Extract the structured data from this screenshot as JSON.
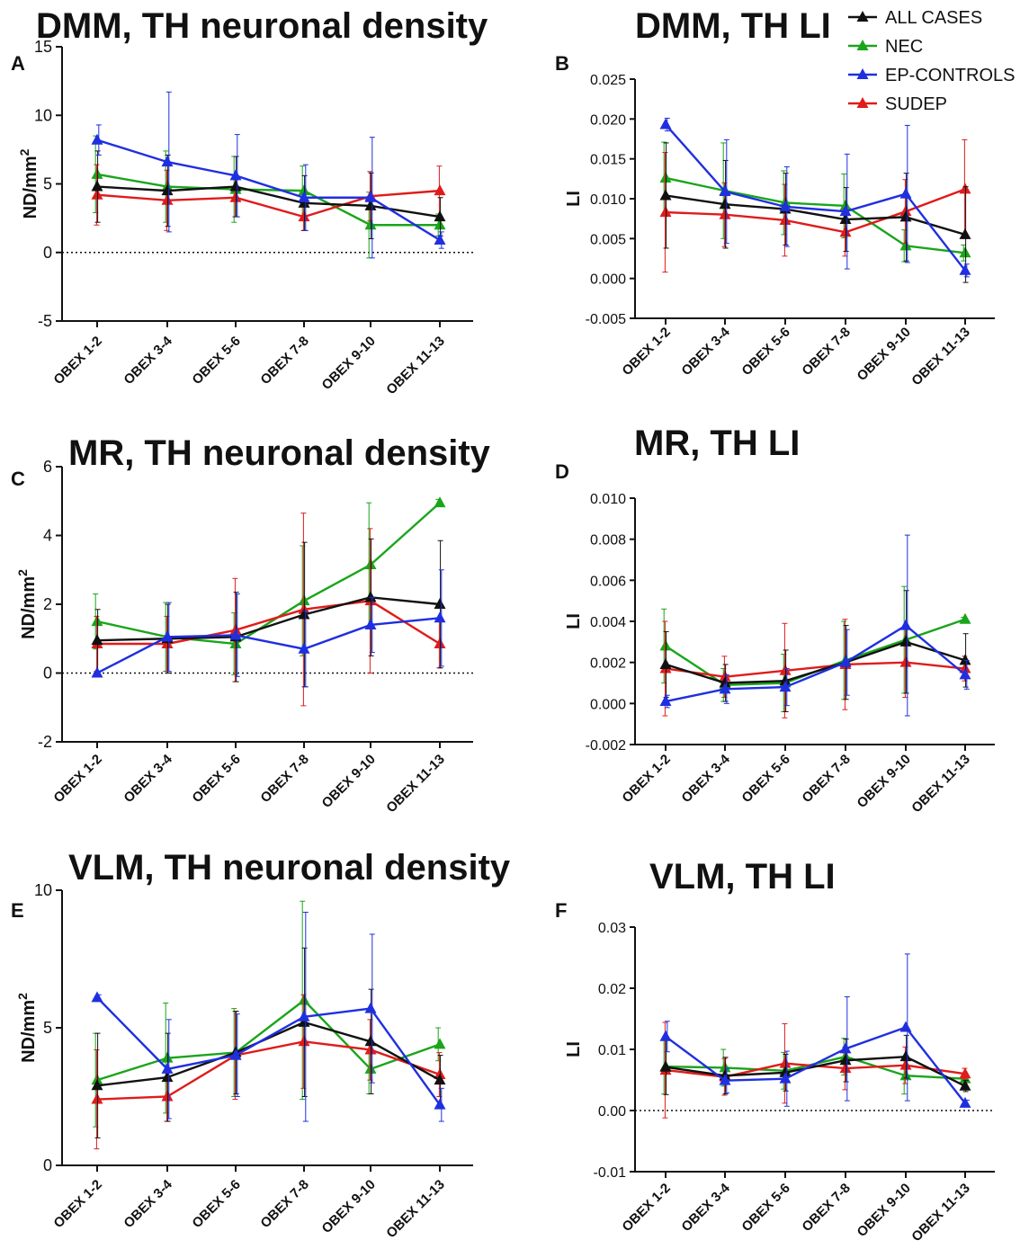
{
  "legend": {
    "items": [
      {
        "name": "ALL CASES",
        "color": "#111111"
      },
      {
        "name": "NEC",
        "color": "#1aa51a"
      },
      {
        "name": "EP-CONTROLS",
        "color": "#1f2fe0"
      },
      {
        "name": "SUDEP",
        "color": "#e01b1b"
      }
    ]
  },
  "chart_data": [
    {
      "panel": "A",
      "type": "line",
      "title": "DMM, TH neuronal density",
      "ylabel": "ND/mm²",
      "ylim": [
        -5,
        15
      ],
      "yticks": [
        -5,
        0,
        5,
        10,
        15
      ],
      "ytick_labels": [
        "-5",
        "0",
        "5",
        "10",
        "15"
      ],
      "zero_line": true,
      "categories": [
        "OBEX 1-2",
        "OBEX 3-4",
        "OBEX 5-6",
        "OBEX 7-8",
        "OBEX 9-10",
        "OBEX 11-13"
      ],
      "series": [
        {
          "name": "NEC",
          "color": "#1aa51a",
          "values": [
            5.7,
            4.8,
            4.6,
            4.5,
            2.0,
            2.0
          ],
          "err": [
            2.8,
            2.6,
            2.4,
            1.8,
            2.4,
            0.8
          ]
        },
        {
          "name": "SUDEP",
          "color": "#e01b1b",
          "values": [
            4.2,
            3.8,
            4.0,
            2.6,
            4.1,
            4.5
          ],
          "err": [
            2.2,
            2.2,
            1.4,
            1.0,
            1.8,
            1.8
          ]
        },
        {
          "name": "ALL CASES",
          "color": "#111111",
          "values": [
            4.8,
            4.5,
            4.8,
            3.6,
            3.4,
            2.6
          ],
          "err": [
            2.6,
            2.6,
            2.2,
            2.0,
            2.4,
            1.4
          ]
        },
        {
          "name": "EP-CONTROLS",
          "color": "#1f2fe0",
          "values": [
            8.2,
            6.6,
            5.6,
            4.0,
            4.0,
            0.9
          ],
          "err": [
            1.1,
            5.1,
            3.0,
            2.4,
            4.4,
            0.6
          ]
        }
      ]
    },
    {
      "panel": "B",
      "type": "line",
      "title": "DMM, TH LI",
      "ylabel": "LI",
      "ylim": [
        -0.005,
        0.025
      ],
      "yticks": [
        -0.005,
        0,
        0.005,
        0.01,
        0.015,
        0.02,
        0.025
      ],
      "ytick_labels": [
        "-0.005",
        "0.000",
        "0.005",
        "0.010",
        "0.015",
        "0.020",
        "0.025"
      ],
      "zero_line": false,
      "categories": [
        "OBEX 1-2",
        "OBEX 3-4",
        "OBEX 5-6",
        "OBEX 7-8",
        "OBEX 9-10",
        "OBEX 11-13"
      ],
      "series": [
        {
          "name": "NEC",
          "color": "#1aa51a",
          "values": [
            0.0126,
            0.011,
            0.0095,
            0.0091,
            0.0041,
            0.0032
          ],
          "err": [
            0.0045,
            0.006,
            0.004,
            0.004,
            0.002,
            0.001
          ]
        },
        {
          "name": "SUDEP",
          "color": "#e01b1b",
          "values": [
            0.0083,
            0.008,
            0.0073,
            0.0058,
            0.0084,
            0.0112
          ],
          "err": [
            0.0075,
            0.004,
            0.0045,
            0.003,
            0.004,
            0.0062
          ]
        },
        {
          "name": "ALL CASES",
          "color": "#111111",
          "values": [
            0.0104,
            0.0093,
            0.0087,
            0.0074,
            0.0077,
            0.0055
          ],
          "err": [
            0.0066,
            0.0055,
            0.0045,
            0.004,
            0.0055,
            0.006
          ]
        },
        {
          "name": "EP-CONTROLS",
          "color": "#1f2fe0",
          "values": [
            0.0193,
            0.0109,
            0.009,
            0.0084,
            0.0106,
            0.001
          ],
          "err": [
            0.0008,
            0.0065,
            0.005,
            0.0072,
            0.0086,
            0.0008
          ]
        }
      ]
    },
    {
      "panel": "C",
      "type": "line",
      "title": "MR, TH neuronal density",
      "ylabel": "ND/mm²",
      "ylim": [
        -2,
        6
      ],
      "yticks": [
        -2,
        0,
        2,
        4,
        6
      ],
      "ytick_labels": [
        "-2",
        "0",
        "2",
        "4",
        "6"
      ],
      "zero_line": true,
      "categories": [
        "OBEX 1-2",
        "OBEX 3-4",
        "OBEX 5-6",
        "OBEX 7-8",
        "OBEX 9-10",
        "OBEX 11-13"
      ],
      "series": [
        {
          "name": "NEC",
          "color": "#1aa51a",
          "values": [
            1.5,
            1.05,
            0.85,
            2.1,
            3.15,
            4.95
          ],
          "err": [
            0.8,
            1.0,
            0.9,
            1.6,
            1.8,
            0.1
          ]
        },
        {
          "name": "SUDEP",
          "color": "#e01b1b",
          "values": [
            0.85,
            0.85,
            1.25,
            1.85,
            2.1,
            0.85
          ],
          "err": [
            0.8,
            0.8,
            1.5,
            2.8,
            2.1,
            0.7
          ]
        },
        {
          "name": "ALL CASES",
          "color": "#111111",
          "values": [
            0.95,
            1.0,
            1.05,
            1.7,
            2.2,
            2.0
          ],
          "err": [
            0.9,
            1.0,
            1.3,
            2.1,
            1.7,
            1.85
          ]
        },
        {
          "name": "EP-CONTROLS",
          "color": "#1f2fe0",
          "values": [
            0.0,
            1.05,
            1.1,
            0.7,
            1.4,
            1.6
          ],
          "err": [
            0.05,
            1.0,
            1.2,
            1.1,
            0.8,
            1.4
          ]
        }
      ]
    },
    {
      "panel": "D",
      "type": "line",
      "title": "MR, TH LI",
      "ylabel": "LI",
      "ylim": [
        -0.002,
        0.01
      ],
      "yticks": [
        -0.002,
        0,
        0.002,
        0.004,
        0.006,
        0.008,
        0.01
      ],
      "ytick_labels": [
        "-0.002",
        "0.000",
        "0.002",
        "0.004",
        "0.006",
        "0.008",
        "0.010"
      ],
      "zero_line": false,
      "categories": [
        "OBEX 1-2",
        "OBEX 3-4",
        "OBEX 5-6",
        "OBEX 7-8",
        "OBEX 9-10",
        "OBEX 11-13"
      ],
      "series": [
        {
          "name": "NEC",
          "color": "#1aa51a",
          "values": [
            0.0028,
            0.0009,
            0.001,
            0.0021,
            0.0031,
            0.0041
          ],
          "err": [
            0.0018,
            0.0008,
            0.0014,
            0.0019,
            0.0026,
            0.0001
          ]
        },
        {
          "name": "SUDEP",
          "color": "#e01b1b",
          "values": [
            0.0017,
            0.0013,
            0.0016,
            0.0019,
            0.002,
            0.0017
          ],
          "err": [
            0.0023,
            0.001,
            0.0023,
            0.0022,
            0.0017,
            0.0006
          ]
        },
        {
          "name": "ALL CASES",
          "color": "#111111",
          "values": [
            0.0019,
            0.001,
            0.0011,
            0.002,
            0.003,
            0.0021
          ],
          "err": [
            0.0016,
            0.0009,
            0.0015,
            0.0018,
            0.0025,
            0.0013
          ]
        },
        {
          "name": "EP-CONTROLS",
          "color": "#1f2fe0",
          "values": [
            0.0001,
            0.0007,
            0.0008,
            0.002,
            0.0038,
            0.0014
          ],
          "err": [
            0.0003,
            0.0007,
            0.0009,
            0.0016,
            0.0044,
            0.0007
          ]
        }
      ]
    },
    {
      "panel": "E",
      "type": "line",
      "title": "VLM, TH neuronal density",
      "ylabel": "ND/mm²",
      "ylim": [
        0,
        10
      ],
      "yticks": [
        0,
        5,
        10
      ],
      "ytick_labels": [
        "0",
        "5",
        "10"
      ],
      "zero_line": false,
      "categories": [
        "OBEX 1-2",
        "OBEX 3-4",
        "OBEX 5-6",
        "OBEX 7-8",
        "OBEX 9-10",
        "OBEX 11-13"
      ],
      "series": [
        {
          "name": "NEC",
          "color": "#1aa51a",
          "values": [
            3.1,
            3.9,
            4.1,
            6.0,
            3.5,
            4.4
          ],
          "err": [
            1.7,
            2.0,
            1.6,
            3.6,
            0.9,
            0.6
          ]
        },
        {
          "name": "SUDEP",
          "color": "#e01b1b",
          "values": [
            2.4,
            2.5,
            4.0,
            4.5,
            4.2,
            3.3
          ],
          "err": [
            1.8,
            0.9,
            1.6,
            1.7,
            1.1,
            0.8
          ]
        },
        {
          "name": "ALL CASES",
          "color": "#111111",
          "values": [
            2.9,
            3.2,
            4.1,
            5.2,
            4.5,
            3.1
          ],
          "err": [
            1.9,
            1.6,
            1.5,
            2.7,
            1.9,
            0.9
          ]
        },
        {
          "name": "EP-CONTROLS",
          "color": "#1f2fe0",
          "values": [
            6.1,
            3.5,
            4.0,
            5.4,
            5.7,
            2.2
          ],
          "err": [
            0.1,
            1.8,
            1.5,
            3.8,
            2.7,
            0.6
          ]
        }
      ]
    },
    {
      "panel": "F",
      "type": "line",
      "title": "VLM, TH LI",
      "ylabel": "LI",
      "ylim": [
        -0.01,
        0.03
      ],
      "yticks": [
        -0.01,
        0,
        0.01,
        0.02,
        0.03
      ],
      "ytick_labels": [
        "-0.01",
        "0.00",
        "0.01",
        "0.02",
        "0.03"
      ],
      "zero_line": true,
      "categories": [
        "OBEX 1-2",
        "OBEX 3-4",
        "OBEX 5-6",
        "OBEX 7-8",
        "OBEX 9-10",
        "OBEX 11-13"
      ],
      "series": [
        {
          "name": "NEC",
          "color": "#1aa51a",
          "values": [
            0.0072,
            0.007,
            0.0065,
            0.0088,
            0.0057,
            0.0052
          ],
          "err": [
            0.0045,
            0.003,
            0.003,
            0.003,
            0.003,
            0.0009
          ]
        },
        {
          "name": "SUDEP",
          "color": "#e01b1b",
          "values": [
            0.0066,
            0.0055,
            0.0077,
            0.0069,
            0.0074,
            0.006
          ],
          "err": [
            0.0078,
            0.003,
            0.0065,
            0.0035,
            0.003,
            0.0009
          ]
        },
        {
          "name": "ALL CASES",
          "color": "#111111",
          "values": [
            0.0071,
            0.0057,
            0.0062,
            0.0082,
            0.0088,
            0.004
          ],
          "err": [
            0.0045,
            0.003,
            0.003,
            0.0035,
            0.0035,
            0.0009
          ]
        },
        {
          "name": "EP-CONTROLS",
          "color": "#1f2fe0",
          "values": [
            0.0121,
            0.0049,
            0.0052,
            0.0101,
            0.0136,
            0.0012
          ],
          "err": [
            0.0025,
            0.002,
            0.0045,
            0.0085,
            0.012,
            0.0005
          ]
        }
      ]
    }
  ]
}
